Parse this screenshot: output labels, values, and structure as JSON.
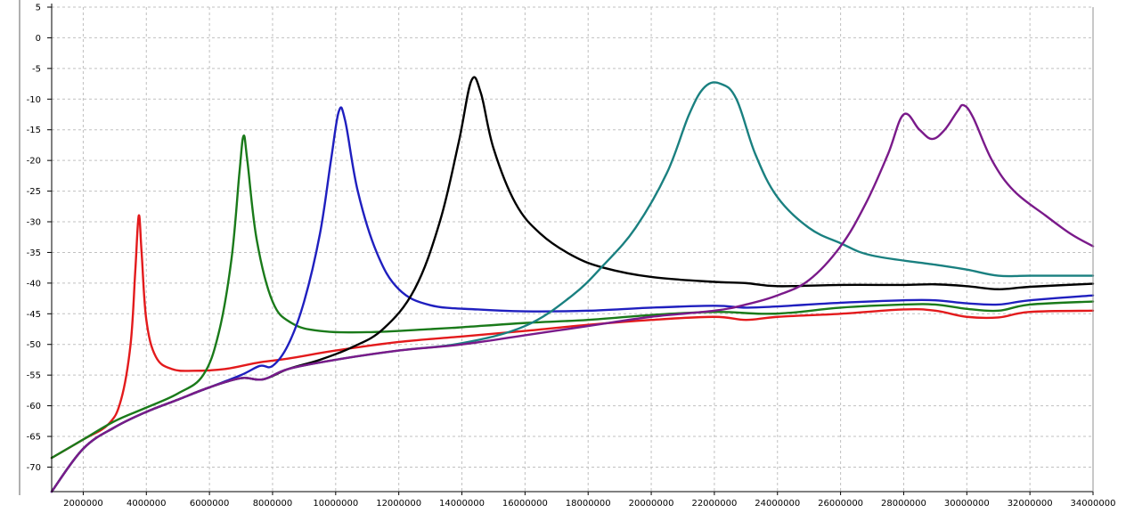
{
  "chart_data": {
    "type": "line",
    "title": "",
    "xlabel": "",
    "ylabel": "",
    "xlim": [
      1000000,
      34000000
    ],
    "ylim": [
      -74,
      5
    ],
    "grid": true,
    "x_ticks": [
      2000000,
      4000000,
      6000000,
      8000000,
      10000000,
      12000000,
      14000000,
      16000000,
      18000000,
      20000000,
      22000000,
      24000000,
      26000000,
      28000000,
      30000000,
      32000000,
      34000000
    ],
    "x_tick_labels": [
      "2000000",
      "4000000",
      "6000000",
      "8000000",
      "10000000",
      "12000000",
      "14000000",
      "16000000",
      "18000000",
      "20000000",
      "22000000",
      "24000000",
      "26000000",
      "28000000",
      "30000000",
      "32000000",
      "34000000"
    ],
    "y_ticks": [
      5,
      0,
      -5,
      -10,
      -15,
      -20,
      -25,
      -30,
      -35,
      -40,
      -45,
      -50,
      -55,
      -60,
      -65,
      -70
    ],
    "y_tick_labels": [
      "5",
      "0",
      "-5",
      "-10",
      "-15",
      "-20",
      "-25",
      "-30",
      "-35",
      "-40",
      "-45",
      "-50",
      "-55",
      "-60",
      "-65",
      "-70"
    ],
    "series": [
      {
        "color": "#e31a1c",
        "points": [
          [
            1000000,
            -68.5
          ],
          [
            2000000,
            -65.5
          ],
          [
            2800000,
            -63
          ],
          [
            3200000,
            -59
          ],
          [
            3500000,
            -50
          ],
          [
            3650000,
            -38
          ],
          [
            3760000,
            -29
          ],
          [
            3850000,
            -35
          ],
          [
            4000000,
            -46
          ],
          [
            4300000,
            -52
          ],
          [
            4800000,
            -54
          ],
          [
            5500000,
            -54.3
          ],
          [
            6500000,
            -54
          ],
          [
            7500000,
            -53
          ],
          [
            8500000,
            -52.3
          ],
          [
            10000000,
            -51
          ],
          [
            12000000,
            -49.6
          ],
          [
            14000000,
            -48.7
          ],
          [
            16000000,
            -47.8
          ],
          [
            18000000,
            -46.8
          ],
          [
            20000000,
            -46
          ],
          [
            22000000,
            -45.5
          ],
          [
            23000000,
            -46
          ],
          [
            24000000,
            -45.5
          ],
          [
            26000000,
            -45
          ],
          [
            28000000,
            -44.3
          ],
          [
            29000000,
            -44.5
          ],
          [
            30000000,
            -45.5
          ],
          [
            31000000,
            -45.6
          ],
          [
            32000000,
            -44.7
          ],
          [
            34000000,
            -44.5
          ]
        ]
      },
      {
        "color": "#1a7a1a",
        "points": [
          [
            1000000,
            -68.5
          ],
          [
            2000000,
            -65.5
          ],
          [
            3000000,
            -62.5
          ],
          [
            4000000,
            -60.3
          ],
          [
            5000000,
            -58
          ],
          [
            5800000,
            -55
          ],
          [
            6300000,
            -48
          ],
          [
            6700000,
            -36
          ],
          [
            6950000,
            -22
          ],
          [
            7080000,
            -16
          ],
          [
            7200000,
            -20
          ],
          [
            7500000,
            -33
          ],
          [
            8000000,
            -43
          ],
          [
            8600000,
            -46.5
          ],
          [
            9500000,
            -47.8
          ],
          [
            11000000,
            -48
          ],
          [
            13000000,
            -47.5
          ],
          [
            14000000,
            -47.2
          ],
          [
            16000000,
            -46.5
          ],
          [
            18000000,
            -46
          ],
          [
            20000000,
            -45.2
          ],
          [
            22000000,
            -44.7
          ],
          [
            23500000,
            -45
          ],
          [
            24500000,
            -44.8
          ],
          [
            26000000,
            -44
          ],
          [
            28000000,
            -43.5
          ],
          [
            29000000,
            -43.5
          ],
          [
            30000000,
            -44.2
          ],
          [
            31000000,
            -44.5
          ],
          [
            32000000,
            -43.5
          ],
          [
            34000000,
            -43
          ]
        ]
      },
      {
        "color": "#1f1fbf",
        "points": [
          [
            1000000,
            -74
          ],
          [
            2000000,
            -67
          ],
          [
            3000000,
            -63.5
          ],
          [
            4000000,
            -61
          ],
          [
            5000000,
            -59
          ],
          [
            6000000,
            -57
          ],
          [
            7000000,
            -55
          ],
          [
            7600000,
            -53.5
          ],
          [
            8000000,
            -53.5
          ],
          [
            8500000,
            -50
          ],
          [
            9000000,
            -43
          ],
          [
            9500000,
            -32
          ],
          [
            9850000,
            -20
          ],
          [
            10100000,
            -12
          ],
          [
            10300000,
            -13.5
          ],
          [
            10700000,
            -25
          ],
          [
            11300000,
            -35
          ],
          [
            12000000,
            -41
          ],
          [
            13000000,
            -43.6
          ],
          [
            14500000,
            -44.3
          ],
          [
            16000000,
            -44.6
          ],
          [
            18000000,
            -44.5
          ],
          [
            20000000,
            -44
          ],
          [
            22000000,
            -43.7
          ],
          [
            23000000,
            -44
          ],
          [
            24000000,
            -43.8
          ],
          [
            26000000,
            -43.2
          ],
          [
            28000000,
            -42.8
          ],
          [
            29000000,
            -42.8
          ],
          [
            30000000,
            -43.3
          ],
          [
            31000000,
            -43.5
          ],
          [
            32000000,
            -42.8
          ],
          [
            34000000,
            -42
          ]
        ]
      },
      {
        "color": "#000000",
        "points": [
          [
            1000000,
            -74
          ],
          [
            2000000,
            -67
          ],
          [
            3000000,
            -63.5
          ],
          [
            4000000,
            -61
          ],
          [
            5000000,
            -59
          ],
          [
            6000000,
            -57
          ],
          [
            7000000,
            -55.5
          ],
          [
            7700000,
            -55.7
          ],
          [
            8500000,
            -54
          ],
          [
            9500000,
            -52.5
          ],
          [
            10500000,
            -50.5
          ],
          [
            11500000,
            -47.5
          ],
          [
            12500000,
            -41
          ],
          [
            13300000,
            -30
          ],
          [
            13900000,
            -17
          ],
          [
            14300000,
            -7
          ],
          [
            14600000,
            -9
          ],
          [
            15000000,
            -18
          ],
          [
            15700000,
            -27
          ],
          [
            16500000,
            -32
          ],
          [
            17500000,
            -35.5
          ],
          [
            18500000,
            -37.5
          ],
          [
            20000000,
            -39
          ],
          [
            22000000,
            -39.8
          ],
          [
            23000000,
            -40
          ],
          [
            24000000,
            -40.5
          ],
          [
            26000000,
            -40.3
          ],
          [
            28000000,
            -40.3
          ],
          [
            29000000,
            -40.2
          ],
          [
            30000000,
            -40.5
          ],
          [
            31000000,
            -41
          ],
          [
            32000000,
            -40.6
          ],
          [
            34000000,
            -40.1
          ]
        ]
      },
      {
        "color": "#1a8080",
        "points": [
          [
            1000000,
            -74
          ],
          [
            2000000,
            -67
          ],
          [
            3000000,
            -63.5
          ],
          [
            4000000,
            -61
          ],
          [
            5000000,
            -59
          ],
          [
            6000000,
            -57
          ],
          [
            7000000,
            -55.5
          ],
          [
            7700000,
            -55.7
          ],
          [
            8500000,
            -54
          ],
          [
            10000000,
            -52.5
          ],
          [
            12000000,
            -51
          ],
          [
            14000000,
            -49.8
          ],
          [
            16000000,
            -47
          ],
          [
            17500000,
            -42
          ],
          [
            18500000,
            -37
          ],
          [
            19500000,
            -31
          ],
          [
            20500000,
            -22
          ],
          [
            21200000,
            -12.5
          ],
          [
            21700000,
            -8
          ],
          [
            22200000,
            -7.5
          ],
          [
            22700000,
            -10
          ],
          [
            23300000,
            -19
          ],
          [
            24000000,
            -26
          ],
          [
            25000000,
            -31
          ],
          [
            26000000,
            -33.5
          ],
          [
            27000000,
            -35.5
          ],
          [
            29000000,
            -37
          ],
          [
            30000000,
            -37.8
          ],
          [
            31000000,
            -38.8
          ],
          [
            32000000,
            -38.8
          ],
          [
            34000000,
            -38.8
          ]
        ]
      },
      {
        "color": "#7a1a8a",
        "points": [
          [
            1000000,
            -74
          ],
          [
            2000000,
            -67
          ],
          [
            3000000,
            -63.5
          ],
          [
            4000000,
            -61
          ],
          [
            5000000,
            -59
          ],
          [
            6000000,
            -57
          ],
          [
            7000000,
            -55.5
          ],
          [
            7700000,
            -55.7
          ],
          [
            8500000,
            -54
          ],
          [
            10000000,
            -52.5
          ],
          [
            12000000,
            -51
          ],
          [
            14000000,
            -50
          ],
          [
            16000000,
            -48.5
          ],
          [
            18000000,
            -47
          ],
          [
            20000000,
            -45.5
          ],
          [
            22000000,
            -44.5
          ],
          [
            23000000,
            -43.5
          ],
          [
            24000000,
            -42
          ],
          [
            25000000,
            -39.5
          ],
          [
            26000000,
            -34
          ],
          [
            26800000,
            -27
          ],
          [
            27500000,
            -19
          ],
          [
            28000000,
            -12.5
          ],
          [
            28500000,
            -15
          ],
          [
            28900000,
            -16.5
          ],
          [
            29300000,
            -15
          ],
          [
            29700000,
            -12
          ],
          [
            29900000,
            -11
          ],
          [
            30200000,
            -13
          ],
          [
            30800000,
            -20
          ],
          [
            31500000,
            -25
          ],
          [
            32500000,
            -29
          ],
          [
            33300000,
            -32
          ],
          [
            34000000,
            -34
          ]
        ]
      }
    ]
  }
}
